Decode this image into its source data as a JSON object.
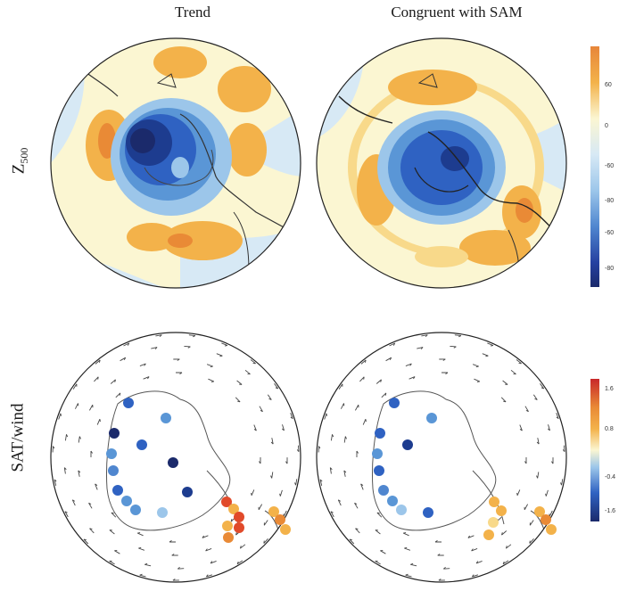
{
  "column_titles": {
    "left": "Trend",
    "right": "Congruent with SAM"
  },
  "row_labels": {
    "top_main": "Z",
    "top_sub": "500",
    "bottom": "SAT/wind"
  },
  "z500_colorbar": {
    "ticks": [
      "60",
      "0",
      "-60",
      "-80",
      "-60",
      "-80"
    ]
  },
  "sat_colorbar": {
    "ticks": [
      "1.6",
      "0.8",
      "-0.4",
      "-1.6"
    ]
  },
  "colors": {
    "dark_blue": "#1b2a6b",
    "mid_blue": "#2f62c2",
    "light_blue": "#9cc6ea",
    "pale_blue": "#d7e9f5",
    "pale_yellow": "#fbf6d2",
    "orange": "#f3b24a",
    "red": "#e14a2a"
  }
}
